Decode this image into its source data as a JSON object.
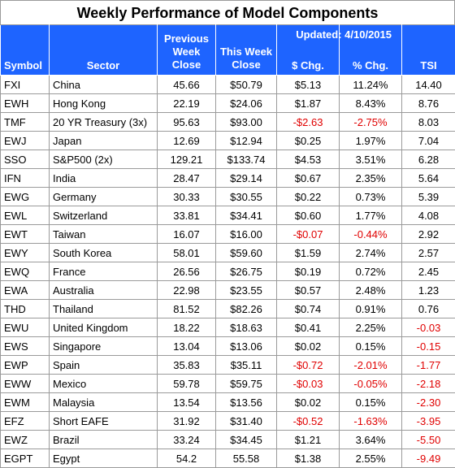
{
  "title": "Weekly Performance of Model Components",
  "updated": "Updated:  4/10/2015",
  "headers": {
    "symbol": "Symbol",
    "sector": "Sector",
    "prev_line1": "Previous",
    "prev_line2": "Week",
    "prev_line3": "Close",
    "this_line1": "This Week",
    "this_line2": "Close",
    "chg": "$ Chg.",
    "pct": "% Chg.",
    "tsi": "TSI"
  },
  "rows": [
    {
      "symbol": "FXI",
      "sector": "China",
      "prev": "45.66",
      "this": "$50.79",
      "chg": "$5.13",
      "pct": "11.24%",
      "tsi": "14.40",
      "neg_chg": false,
      "neg_tsi": false
    },
    {
      "symbol": "EWH",
      "sector": "Hong Kong",
      "prev": "22.19",
      "this": "$24.06",
      "chg": "$1.87",
      "pct": "8.43%",
      "tsi": "8.76",
      "neg_chg": false,
      "neg_tsi": false
    },
    {
      "symbol": "TMF",
      "sector": "20 YR Treasury  (3x)",
      "prev": "95.63",
      "this": "$93.00",
      "chg": "-$2.63",
      "pct": "-2.75%",
      "tsi": "8.03",
      "neg_chg": true,
      "neg_tsi": false
    },
    {
      "symbol": "EWJ",
      "sector": "Japan",
      "prev": "12.69",
      "this": "$12.94",
      "chg": "$0.25",
      "pct": "1.97%",
      "tsi": "7.04",
      "neg_chg": false,
      "neg_tsi": false
    },
    {
      "symbol": "SSO",
      "sector": "S&P500 (2x)",
      "prev": "129.21",
      "this": "$133.74",
      "chg": "$4.53",
      "pct": "3.51%",
      "tsi": "6.28",
      "neg_chg": false,
      "neg_tsi": false
    },
    {
      "symbol": "IFN",
      "sector": "India",
      "prev": "28.47",
      "this": "$29.14",
      "chg": "$0.67",
      "pct": "2.35%",
      "tsi": "5.64",
      "neg_chg": false,
      "neg_tsi": false
    },
    {
      "symbol": "EWG",
      "sector": "Germany",
      "prev": "30.33",
      "this": "$30.55",
      "chg": "$0.22",
      "pct": "0.73%",
      "tsi": "5.39",
      "neg_chg": false,
      "neg_tsi": false
    },
    {
      "symbol": "EWL",
      "sector": "Switzerland",
      "prev": "33.81",
      "this": "$34.41",
      "chg": "$0.60",
      "pct": "1.77%",
      "tsi": "4.08",
      "neg_chg": false,
      "neg_tsi": false
    },
    {
      "symbol": "EWT",
      "sector": "Taiwan",
      "prev": "16.07",
      "this": "$16.00",
      "chg": "-$0.07",
      "pct": "-0.44%",
      "tsi": "2.92",
      "neg_chg": true,
      "neg_tsi": false
    },
    {
      "symbol": "EWY",
      "sector": "South Korea",
      "prev": "58.01",
      "this": "$59.60",
      "chg": "$1.59",
      "pct": "2.74%",
      "tsi": "2.57",
      "neg_chg": false,
      "neg_tsi": false
    },
    {
      "symbol": "EWQ",
      "sector": "France",
      "prev": "26.56",
      "this": "$26.75",
      "chg": "$0.19",
      "pct": "0.72%",
      "tsi": "2.45",
      "neg_chg": false,
      "neg_tsi": false
    },
    {
      "symbol": "EWA",
      "sector": "Australia",
      "prev": "22.98",
      "this": "$23.55",
      "chg": "$0.57",
      "pct": "2.48%",
      "tsi": "1.23",
      "neg_chg": false,
      "neg_tsi": false
    },
    {
      "symbol": "THD",
      "sector": "Thailand",
      "prev": "81.52",
      "this": "$82.26",
      "chg": "$0.74",
      "pct": "0.91%",
      "tsi": "0.76",
      "neg_chg": false,
      "neg_tsi": false
    },
    {
      "symbol": "EWU",
      "sector": "United Kingdom",
      "prev": "18.22",
      "this": "$18.63",
      "chg": "$0.41",
      "pct": "2.25%",
      "tsi": "-0.03",
      "neg_chg": false,
      "neg_tsi": true
    },
    {
      "symbol": "EWS",
      "sector": "Singapore",
      "prev": "13.04",
      "this": "$13.06",
      "chg": "$0.02",
      "pct": "0.15%",
      "tsi": "-0.15",
      "neg_chg": false,
      "neg_tsi": true
    },
    {
      "symbol": "EWP",
      "sector": "Spain",
      "prev": "35.83",
      "this": "$35.11",
      "chg": "-$0.72",
      "pct": "-2.01%",
      "tsi": "-1.77",
      "neg_chg": true,
      "neg_tsi": true
    },
    {
      "symbol": "EWW",
      "sector": "Mexico",
      "prev": "59.78",
      "this": "$59.75",
      "chg": "-$0.03",
      "pct": "-0.05%",
      "tsi": "-2.18",
      "neg_chg": true,
      "neg_tsi": true
    },
    {
      "symbol": "EWM",
      "sector": "Malaysia",
      "prev": "13.54",
      "this": "$13.56",
      "chg": "$0.02",
      "pct": "0.15%",
      "tsi": "-2.30",
      "neg_chg": false,
      "neg_tsi": true
    },
    {
      "symbol": "EFZ",
      "sector": "Short EAFE",
      "prev": "31.92",
      "this": "$31.40",
      "chg": "-$0.52",
      "pct": "-1.63%",
      "tsi": "-3.95",
      "neg_chg": true,
      "neg_tsi": true
    },
    {
      "symbol": "EWZ",
      "sector": "Brazil",
      "prev": "33.24",
      "this": "$34.45",
      "chg": "$1.21",
      "pct": "3.64%",
      "tsi": "-5.50",
      "neg_chg": false,
      "neg_tsi": true
    },
    {
      "symbol": "EGPT",
      "sector": "Egypt",
      "prev": "54.2",
      "this": "55.58",
      "chg": "$1.38",
      "pct": "2.55%",
      "tsi": "-9.49",
      "neg_chg": false,
      "neg_tsi": true
    }
  ],
  "colors": {
    "header_bg": "#1e64ff",
    "header_text": "#ffffff",
    "negative": "#e00000",
    "grid": "#9a9a9a"
  }
}
